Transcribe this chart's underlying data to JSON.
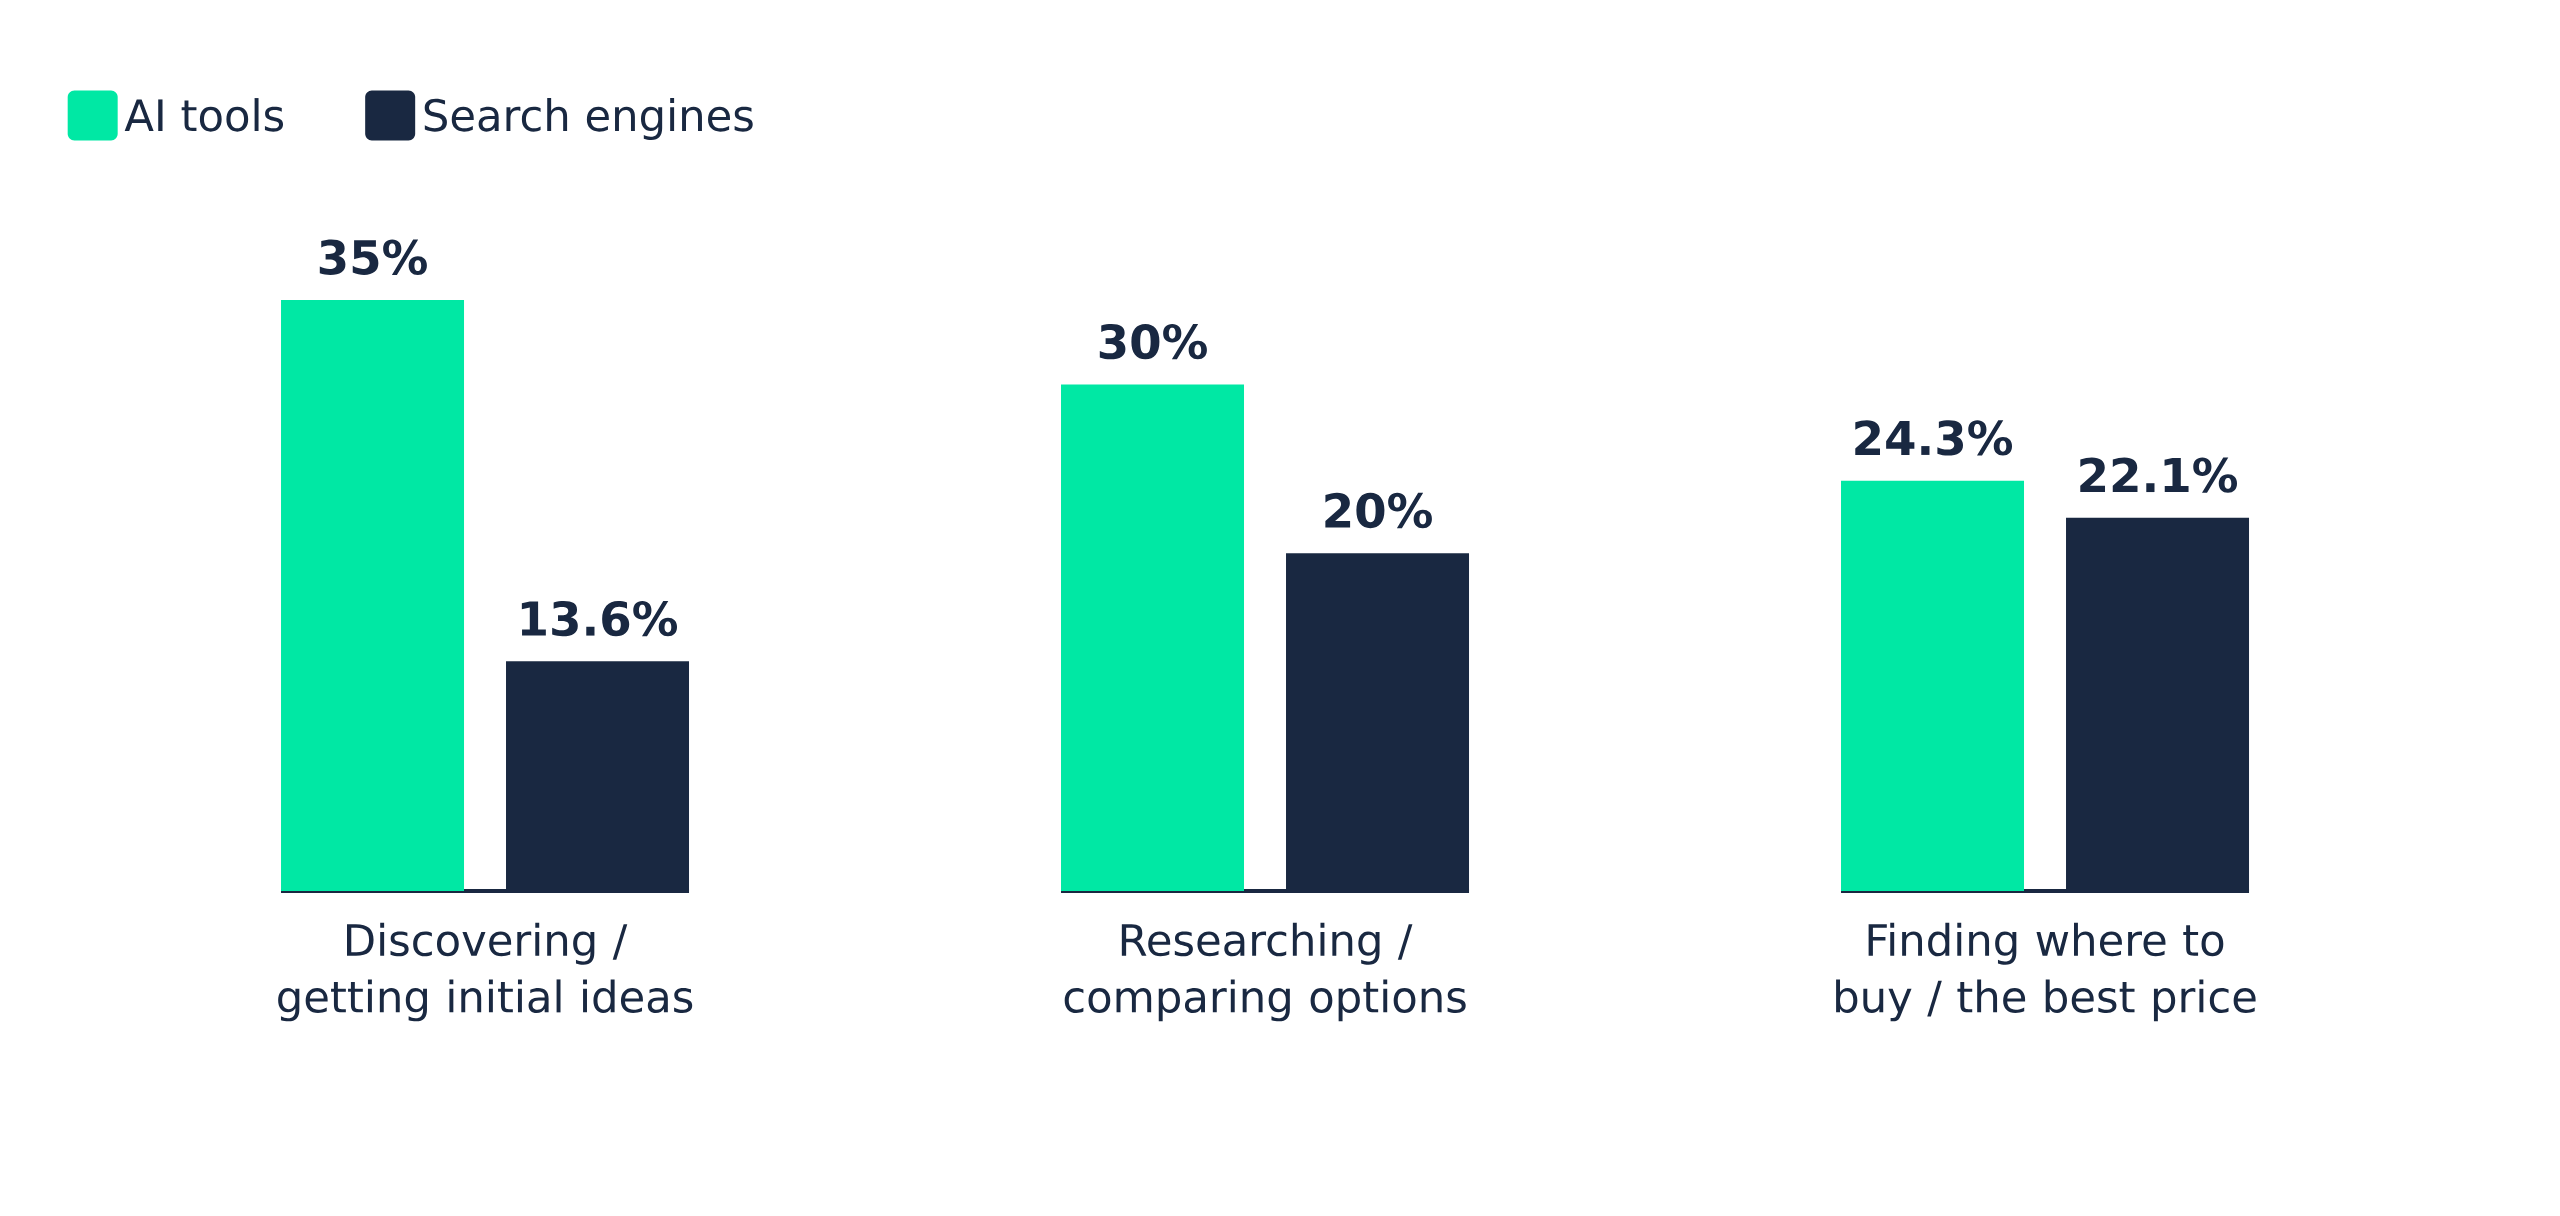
{
  "chart_data": {
    "type": "bar",
    "categories": [
      "Discovering / getting initial ideas",
      "Researching / comparing options",
      "Finding where to buy / the best price"
    ],
    "series": [
      {
        "name": "AI tools",
        "color": "#00e8a4",
        "values": [
          35,
          30,
          24.3
        ],
        "value_labels": [
          "35%",
          "30%",
          "24.3%"
        ]
      },
      {
        "name": "Search engines",
        "color": "#192841",
        "values": [
          13.6,
          20,
          22.1
        ],
        "value_labels": [
          "13.6%",
          "20%",
          "22.1%"
        ]
      }
    ],
    "legend": "top left"
  }
}
